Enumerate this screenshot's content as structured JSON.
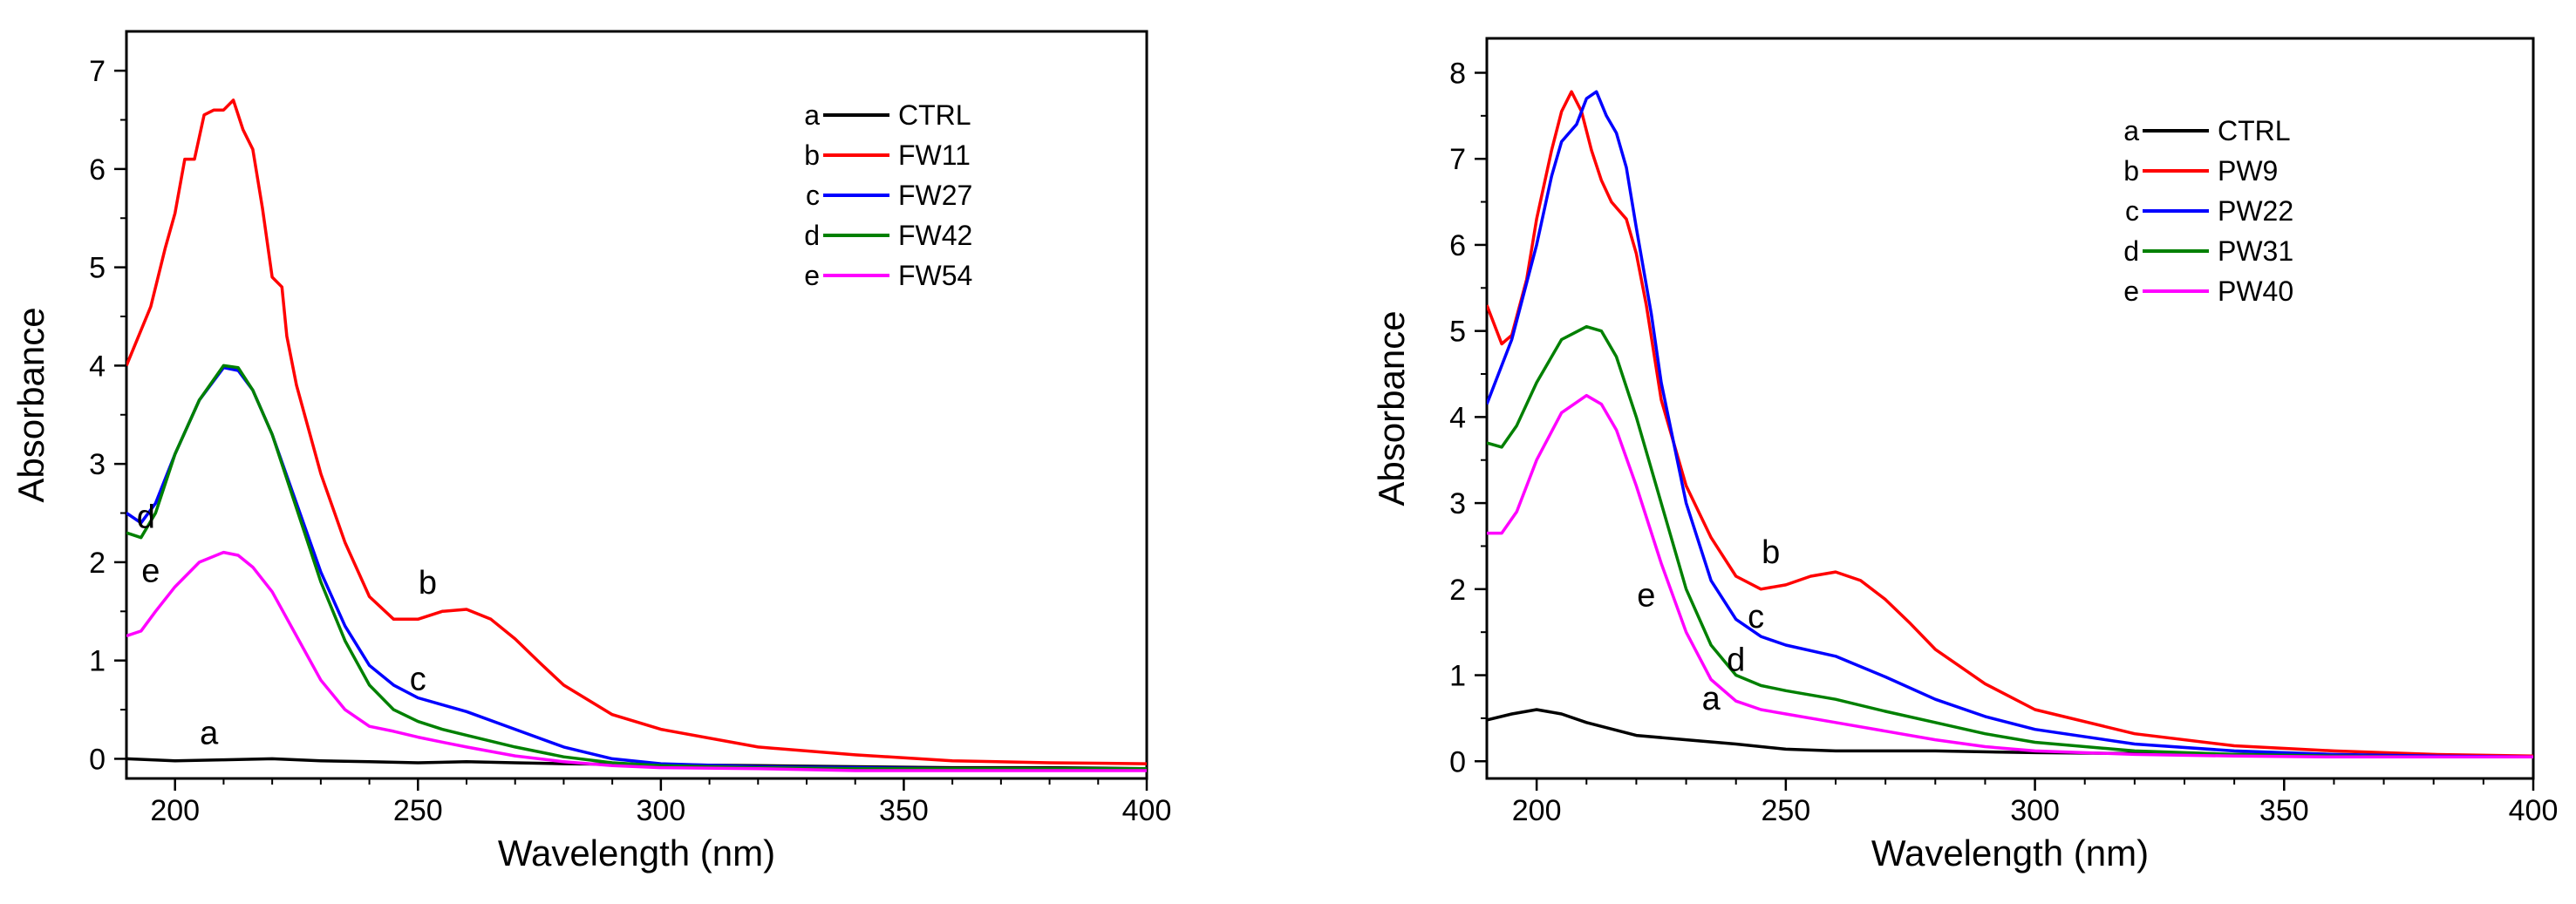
{
  "chart_data": [
    {
      "type": "line",
      "title": "",
      "xlabel": "Wavelength  (nm)",
      "ylabel": "Absorbance",
      "xlim": [
        190,
        400
      ],
      "ylim": [
        -0.2,
        7.4
      ],
      "xticks": [
        200,
        250,
        300,
        350,
        400
      ],
      "yticks": [
        0,
        1,
        2,
        3,
        4,
        5,
        6,
        7
      ],
      "legend_position": "top-right",
      "series": [
        {
          "letter": "a",
          "name": "CTRL",
          "color": "#000000",
          "x": [
            190,
            200,
            210,
            220,
            230,
            240,
            250,
            260,
            270,
            280,
            300,
            320,
            340,
            360,
            380,
            400
          ],
          "y": [
            0.0,
            -0.02,
            -0.01,
            0.0,
            -0.02,
            -0.03,
            -0.04,
            -0.03,
            -0.04,
            -0.05,
            -0.06,
            -0.07,
            -0.08,
            -0.09,
            -0.09,
            -0.1
          ]
        },
        {
          "letter": "b",
          "name": "FW11",
          "color": "#ff0000",
          "x": [
            190,
            195,
            198,
            200,
            202,
            204,
            206,
            208,
            210,
            212,
            214,
            216,
            218,
            220,
            222,
            223,
            225,
            230,
            235,
            240,
            245,
            250,
            255,
            260,
            265,
            270,
            275,
            280,
            290,
            300,
            320,
            340,
            360,
            380,
            400
          ],
          "y": [
            4.0,
            4.6,
            5.2,
            5.55,
            6.1,
            6.1,
            6.55,
            6.6,
            6.6,
            6.7,
            6.4,
            6.2,
            5.6,
            4.9,
            4.8,
            4.3,
            3.8,
            2.9,
            2.2,
            1.65,
            1.42,
            1.42,
            1.5,
            1.52,
            1.42,
            1.22,
            0.98,
            0.75,
            0.45,
            0.3,
            0.12,
            0.04,
            -0.02,
            -0.04,
            -0.05
          ]
        },
        {
          "letter": "c",
          "name": "FW27",
          "color": "#0000ff",
          "x": [
            190,
            193,
            196,
            200,
            205,
            210,
            213,
            216,
            220,
            225,
            230,
            235,
            240,
            245,
            250,
            255,
            260,
            270,
            280,
            290,
            300,
            320,
            340,
            360,
            380,
            400
          ],
          "y": [
            2.5,
            2.4,
            2.6,
            3.1,
            3.65,
            3.98,
            3.95,
            3.75,
            3.3,
            2.6,
            1.9,
            1.35,
            0.95,
            0.75,
            0.62,
            0.55,
            0.48,
            0.3,
            0.12,
            0.0,
            -0.05,
            -0.08,
            -0.09,
            -0.1,
            -0.1,
            -0.1
          ]
        },
        {
          "letter": "d",
          "name": "FW42",
          "color": "#008000",
          "x": [
            190,
            193,
            196,
            200,
            205,
            210,
            213,
            216,
            220,
            225,
            230,
            235,
            240,
            245,
            250,
            255,
            260,
            270,
            280,
            290,
            300,
            320,
            340,
            360,
            380,
            400
          ],
          "y": [
            2.3,
            2.25,
            2.5,
            3.1,
            3.65,
            4.0,
            3.98,
            3.75,
            3.3,
            2.55,
            1.8,
            1.2,
            0.75,
            0.5,
            0.38,
            0.3,
            0.24,
            0.12,
            0.02,
            -0.04,
            -0.07,
            -0.09,
            -0.1,
            -0.1,
            -0.1,
            -0.1
          ]
        },
        {
          "letter": "e",
          "name": "FW54",
          "color": "#ff00ff",
          "x": [
            190,
            193,
            196,
            200,
            205,
            210,
            213,
            216,
            220,
            225,
            230,
            235,
            240,
            245,
            250,
            255,
            260,
            270,
            280,
            290,
            300,
            320,
            340,
            360,
            380,
            400
          ],
          "y": [
            1.25,
            1.3,
            1.5,
            1.75,
            2.0,
            2.1,
            2.07,
            1.95,
            1.7,
            1.25,
            0.8,
            0.5,
            0.33,
            0.28,
            0.22,
            0.17,
            0.12,
            0.03,
            -0.03,
            -0.07,
            -0.09,
            -0.1,
            -0.12,
            -0.12,
            -0.12,
            -0.12
          ]
        }
      ],
      "annotations": [
        {
          "text": "b",
          "x": 252,
          "y": 1.68
        },
        {
          "text": "c",
          "x": 250,
          "y": 0.7
        },
        {
          "text": "d",
          "x": 194,
          "y": 2.35
        },
        {
          "text": "e",
          "x": 195,
          "y": 1.8
        },
        {
          "text": "a",
          "x": 207,
          "y": 0.15
        }
      ]
    },
    {
      "type": "line",
      "title": "",
      "xlabel": "Wavelength  (nm)",
      "ylabel": "Absorbance",
      "xlim": [
        190,
        400
      ],
      "ylim": [
        -0.2,
        8.4
      ],
      "xticks": [
        200,
        250,
        300,
        350,
        400
      ],
      "yticks": [
        0,
        1,
        2,
        3,
        4,
        5,
        6,
        7,
        8
      ],
      "legend_position": "top-right",
      "series": [
        {
          "letter": "a",
          "name": "CTRL",
          "color": "#000000",
          "x": [
            190,
            195,
            200,
            205,
            210,
            220,
            230,
            240,
            250,
            260,
            280,
            300,
            320,
            340,
            360,
            380,
            400
          ],
          "y": [
            0.48,
            0.55,
            0.6,
            0.55,
            0.45,
            0.3,
            0.25,
            0.2,
            0.14,
            0.12,
            0.12,
            0.1,
            0.09,
            0.08,
            0.07,
            0.06,
            0.05
          ]
        },
        {
          "letter": "b",
          "name": "PW9",
          "color": "#ff0000",
          "x": [
            190,
            193,
            195,
            198,
            200,
            203,
            205,
            207,
            209,
            211,
            213,
            215,
            218,
            220,
            222,
            225,
            230,
            235,
            240,
            245,
            250,
            255,
            260,
            265,
            270,
            275,
            280,
            290,
            300,
            320,
            340,
            360,
            380,
            400
          ],
          "y": [
            5.3,
            4.85,
            4.95,
            5.6,
            6.3,
            7.1,
            7.55,
            7.78,
            7.55,
            7.1,
            6.75,
            6.5,
            6.3,
            5.9,
            5.3,
            4.2,
            3.2,
            2.6,
            2.15,
            2.0,
            2.05,
            2.15,
            2.2,
            2.1,
            1.88,
            1.6,
            1.3,
            0.9,
            0.6,
            0.32,
            0.18,
            0.12,
            0.08,
            0.06
          ]
        },
        {
          "letter": "c",
          "name": "PW22",
          "color": "#0000ff",
          "x": [
            190,
            195,
            200,
            203,
            205,
            208,
            210,
            212,
            214,
            216,
            218,
            220,
            223,
            225,
            230,
            235,
            240,
            245,
            250,
            260,
            270,
            280,
            290,
            300,
            320,
            340,
            360,
            380,
            400
          ],
          "y": [
            4.15,
            4.9,
            6.0,
            6.8,
            7.2,
            7.4,
            7.7,
            7.78,
            7.5,
            7.3,
            6.9,
            6.2,
            5.2,
            4.4,
            3.0,
            2.1,
            1.65,
            1.45,
            1.35,
            1.22,
            0.98,
            0.72,
            0.52,
            0.37,
            0.2,
            0.12,
            0.08,
            0.06,
            0.05
          ]
        },
        {
          "letter": "d",
          "name": "PW31",
          "color": "#008000",
          "x": [
            190,
            193,
            196,
            200,
            205,
            210,
            213,
            216,
            220,
            225,
            230,
            235,
            240,
            245,
            250,
            260,
            270,
            280,
            290,
            300,
            320,
            340,
            360,
            380,
            400
          ],
          "y": [
            3.7,
            3.65,
            3.9,
            4.4,
            4.9,
            5.05,
            5.0,
            4.7,
            4.0,
            3.0,
            2.0,
            1.35,
            1.0,
            0.88,
            0.82,
            0.72,
            0.58,
            0.45,
            0.32,
            0.22,
            0.12,
            0.08,
            0.06,
            0.05,
            0.05
          ]
        },
        {
          "letter": "e",
          "name": "PW40",
          "color": "#ff00ff",
          "x": [
            190,
            193,
            196,
            200,
            205,
            210,
            213,
            216,
            220,
            225,
            230,
            235,
            240,
            245,
            250,
            260,
            270,
            280,
            290,
            300,
            320,
            340,
            360,
            380,
            400
          ],
          "y": [
            2.65,
            2.65,
            2.9,
            3.5,
            4.05,
            4.25,
            4.15,
            3.85,
            3.2,
            2.3,
            1.5,
            0.95,
            0.7,
            0.6,
            0.55,
            0.45,
            0.35,
            0.25,
            0.17,
            0.12,
            0.08,
            0.06,
            0.05,
            0.05,
            0.05
          ]
        }
      ],
      "annotations": [
        {
          "text": "b",
          "x": 247,
          "y": 2.3
        },
        {
          "text": "c",
          "x": 244,
          "y": 1.55
        },
        {
          "text": "e",
          "x": 222,
          "y": 1.8
        },
        {
          "text": "d",
          "x": 240,
          "y": 1.05
        },
        {
          "text": "a",
          "x": 235,
          "y": 0.6
        }
      ]
    }
  ]
}
